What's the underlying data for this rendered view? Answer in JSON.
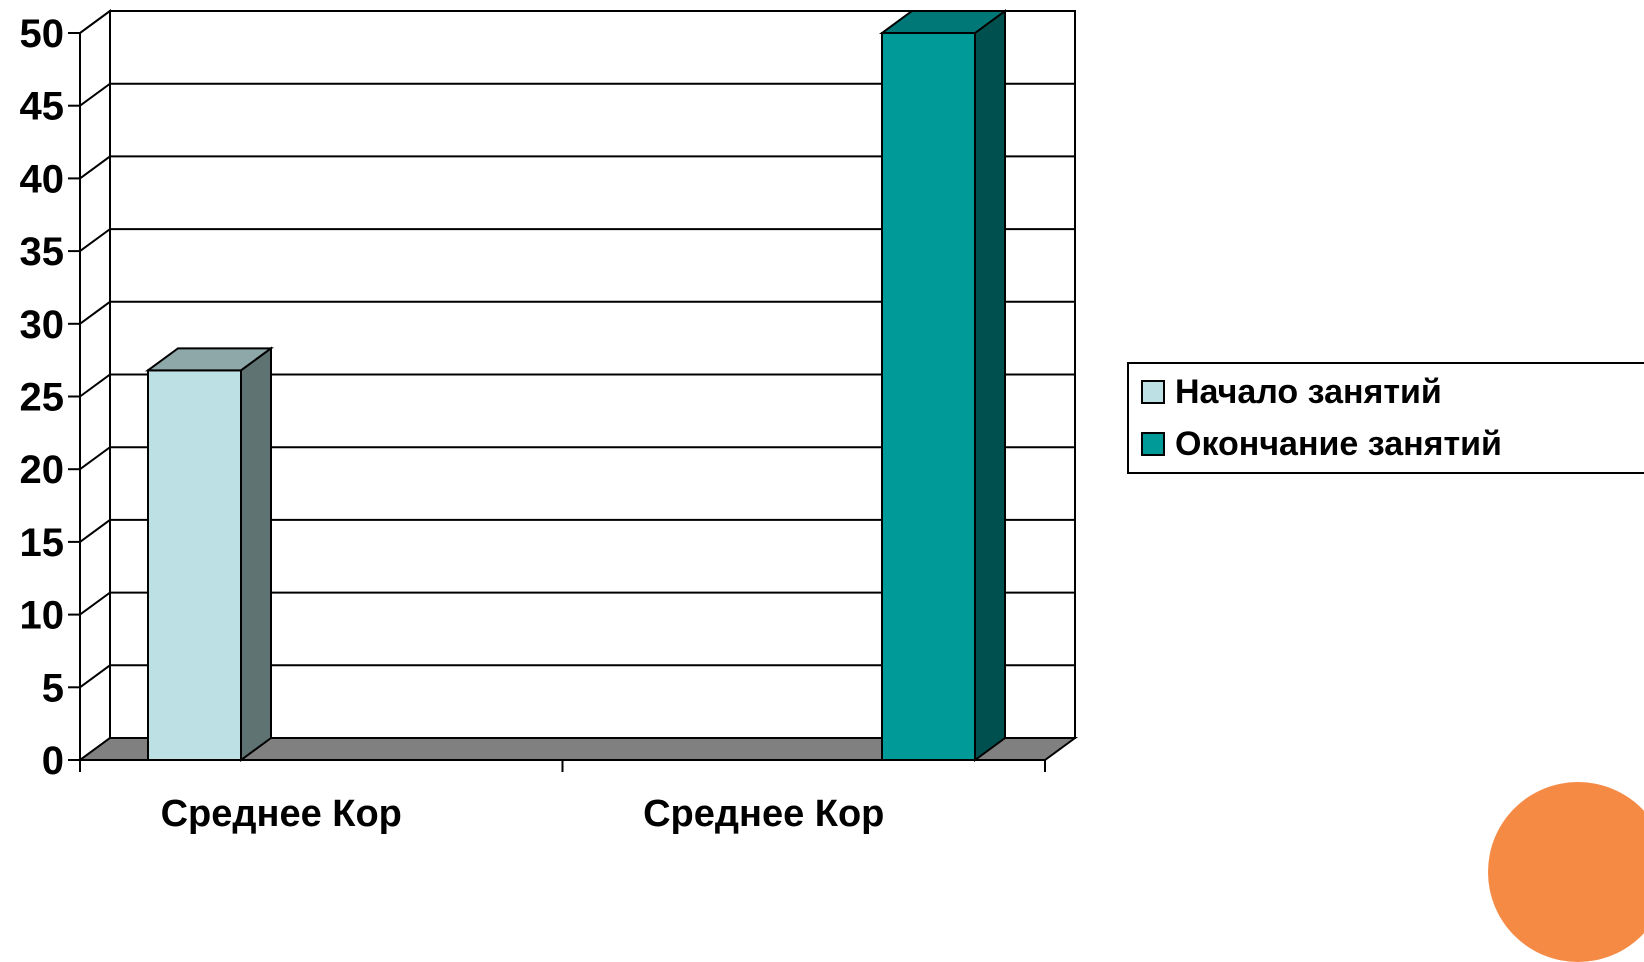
{
  "chart_data": {
    "type": "bar",
    "categories": [
      "Среднее Кор",
      "Среднее Кор"
    ],
    "series": [
      {
        "name": "Начало занятий",
        "values": [
          26.8,
          null
        ],
        "color": "#bde0e4",
        "side_color": "#5f7373",
        "top_color": "#8ea8aa"
      },
      {
        "name": "Окончание занятий",
        "values": [
          null,
          50
        ],
        "color": "#009a98",
        "side_color": "#005050",
        "top_color": "#007878"
      }
    ],
    "ylim": [
      0,
      50
    ],
    "yticks": [
      0,
      5,
      10,
      15,
      20,
      25,
      30,
      35,
      40,
      45,
      50
    ],
    "grid": true,
    "legend_placement": "right"
  }
}
